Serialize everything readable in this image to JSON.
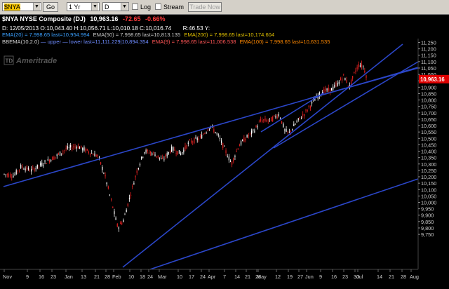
{
  "toolbar": {
    "symbol": "$NYA",
    "go_label": "Go",
    "period": "1 Yr",
    "interval": "D",
    "log_label": "Log",
    "stream_label": "Stream",
    "trade_label": "Trade Now"
  },
  "header": {
    "title": "$NYA NYSE Composite (DJ)",
    "last": "10,963.16",
    "change": "-72.65",
    "change_pct": "-0.66%",
    "ohlc_line": "D: 12/05/2013 O:10,043.40 H:10,056.71 L:10,010.18 C:10,016.74",
    "r_line": "R:46.53   Y:",
    "ema_line": {
      "ema20": "EMA(20) = 7,998.65 last=10,954.994",
      "ema50": "EMA(50) = 7,998.65 last=10,813.135",
      "ema200": "EMA(200) = 7,998.65 last=10,174.604"
    },
    "bbema_line": {
      "band": "BBEMA(10,2.0)",
      "upper_lower": "— upper — lower last=11,111.229|10,894.354",
      "ema9": "EMA(9) = 7,998.65 last=11,006.538",
      "ema100": "EMA(100) = 7,998.65 last=10,631.535"
    }
  },
  "watermark": "Ameritrade",
  "price_badge": "10,963.16",
  "colors": {
    "up": "#ffffff",
    "down": "#e02020",
    "trendline": "#2b46c8",
    "ema20": "#3aa0ff",
    "ema50": "#c0c0c0",
    "ema200": "#e0c000",
    "ema9": "#ff5555",
    "ema100": "#ff8800",
    "badge": "#e00000"
  },
  "chart_data": {
    "type": "candlestick",
    "ylim": [
      9725,
      11300
    ],
    "y_ticks": [
      "11,250",
      "11,200",
      "11,150",
      "11,100",
      "11,050",
      "11,000",
      "10,950",
      "10,900",
      "10,850",
      "10,800",
      "10,750",
      "10,700",
      "10,650",
      "10,600",
      "10,550",
      "10,500",
      "10,450",
      "10,400",
      "10,350",
      "10,300",
      "10,250",
      "10,200",
      "10,150",
      "10,100",
      "10,050",
      "10,000",
      "9,950",
      "9,900",
      "9,850",
      "9,800",
      "9,750"
    ],
    "x_ticks": [
      "Nov",
      "9",
      "16",
      "23",
      "Jan",
      "13",
      "21",
      "28",
      "Feb",
      "10",
      "18",
      "24",
      "Mar",
      "10",
      "17",
      "24",
      "Apr",
      "7",
      "14",
      "21",
      "28",
      "May",
      "12",
      "19",
      "27",
      "Jun",
      "9",
      "16",
      "23",
      "30",
      "Jul",
      "14",
      "21",
      "28",
      "Aug"
    ],
    "last_close": 10963.16
  }
}
